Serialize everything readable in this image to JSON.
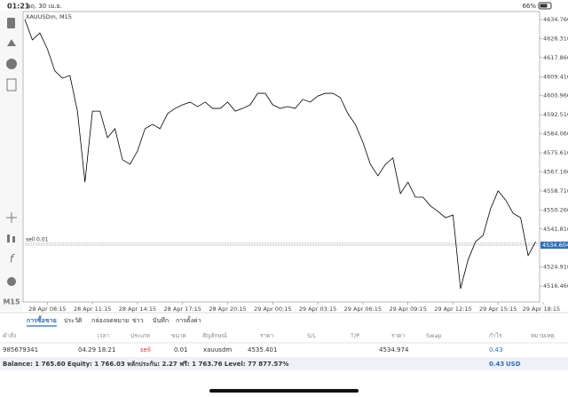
{
  "status_bar": {
    "time": "01:21",
    "date": "พฤ. 30 เม.ย.",
    "battery": "66%"
  },
  "toolbar": {
    "timeframe": "M15"
  },
  "chart_data": {
    "type": "line",
    "title": "XAUUSDm, M15",
    "color": "#000000",
    "x": [
      -6,
      -4,
      -2,
      0,
      2,
      4,
      6,
      8,
      10,
      12,
      14,
      16,
      18,
      20,
      22,
      24,
      26,
      28,
      30,
      32,
      34,
      36,
      38,
      40,
      42,
      44,
      46,
      48,
      50,
      52,
      54,
      56,
      58,
      60,
      62,
      64,
      66,
      68,
      70,
      72,
      74,
      76,
      78,
      80,
      82,
      84,
      86,
      88,
      90,
      92,
      94,
      96,
      98,
      100,
      102,
      104,
      106,
      108,
      110,
      112,
      114,
      116,
      118,
      120,
      122,
      124,
      126,
      128,
      130
    ],
    "values": [
      4634.8,
      4625.7,
      4628.8,
      4621.7,
      4611.9,
      4608.7,
      4609.9,
      4594.1,
      4562.6,
      4594.1,
      4594.1,
      4582.3,
      4586.3,
      4572.5,
      4570.5,
      4576.4,
      4586.3,
      4588.2,
      4586.3,
      4593.0,
      4595.3,
      4596.9,
      4598.1,
      4596.1,
      4598.1,
      4595.3,
      4595.3,
      4598.1,
      4594.1,
      4595.3,
      4596.9,
      4602.0,
      4602.0,
      4596.9,
      4595.3,
      4596.1,
      4595.3,
      4599.3,
      4598.1,
      4600.8,
      4602.0,
      4602.0,
      4600.1,
      4593.0,
      4588.2,
      4580.3,
      4570.5,
      4565.4,
      4570.5,
      4573.3,
      4557.5,
      4562.6,
      4555.9,
      4555.9,
      4552.0,
      4549.6,
      4546.8,
      4548.0,
      4515.3,
      4528.0,
      4536.2,
      4538.9,
      4550.8,
      4558.7,
      4554.7,
      4548.8,
      4546.8,
      4530.0,
      4536.2
    ],
    "xlim": [
      -6,
      132
    ],
    "xticks": [
      {
        "value": 0,
        "label": "28 Apr 08:15"
      },
      {
        "value": 12,
        "label": "28 Apr 11:15"
      },
      {
        "value": 24,
        "label": "28 Apr 14:15"
      },
      {
        "value": 36,
        "label": "28 Apr 17:15"
      },
      {
        "value": 48,
        "label": "28 Apr 20:15"
      },
      {
        "value": 60,
        "label": "29 Apr 00:15"
      },
      {
        "value": 72,
        "label": "29 Apr 03:15"
      },
      {
        "value": 84,
        "label": "29 Apr 06:15"
      },
      {
        "value": 96,
        "label": "29 Apr 09:15"
      },
      {
        "value": 108,
        "label": "29 Apr 12:15"
      },
      {
        "value": 120,
        "label": "29 Apr 15:15"
      },
      {
        "value": 132,
        "label": "29 Apr 18:15"
      }
    ],
    "ylim": [
      4509.4,
      4637.5
    ],
    "yticks": [
      {
        "value": 4634.76,
        "label": "4634.760"
      },
      {
        "value": 4626.31,
        "label": "4626.310"
      },
      {
        "value": 4617.86,
        "label": "4617.860"
      },
      {
        "value": 4609.41,
        "label": "4609.410"
      },
      {
        "value": 4600.96,
        "label": "4600.960"
      },
      {
        "value": 4592.51,
        "label": "4592.510"
      },
      {
        "value": 4584.06,
        "label": "4584.060"
      },
      {
        "value": 4575.61,
        "label": "4575.610"
      },
      {
        "value": 4567.16,
        "label": "4567.160"
      },
      {
        "value": 4558.71,
        "label": "4558.710"
      },
      {
        "value": 4550.26,
        "label": "4550.260"
      },
      {
        "value": 4541.81,
        "label": "4541.810"
      },
      {
        "value": 4524.91,
        "label": "4524.910"
      },
      {
        "value": 4516.46,
        "label": "4516.460"
      }
    ],
    "current_price": 4534.604,
    "order_line": {
      "label": "sell 0.01",
      "value": 4535.401
    }
  },
  "terminal": {
    "tabs": [
      "การซื้อขาย",
      "ประวัติ",
      "กล่องจดหมาย",
      "ข่าว",
      "บันทึก",
      "การตั้งค่า"
    ],
    "columns": [
      "คำสั่ง",
      "เวลา",
      "ประเภท",
      "ขนาด",
      "สัญลักษณ์",
      "ราคา",
      "S/L",
      "T/P",
      "ราคา",
      "Swap",
      "กำไร",
      "หมายเหตุ"
    ],
    "order": {
      "ticket": "985679341",
      "time": "04.29 18:21",
      "type": "sell",
      "volume": "0.01",
      "symbol": "xauusdm",
      "open_price": "4535.401",
      "price": "4534.974",
      "profit": "0.43"
    },
    "balance": "Balance: 1 765.60 Equity: 1 766.03 หลักประกัน: 2.27 ฟรี: 1 763.76 Level: 77 877.57%",
    "total_profit": "0.43",
    "currency": "USD"
  }
}
